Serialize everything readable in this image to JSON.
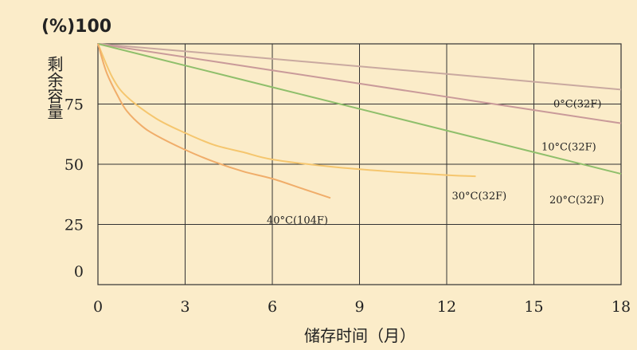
{
  "chart_data": {
    "type": "line",
    "title": "(%)100",
    "ylabel": "剩余容量",
    "xlabel": "储存时间（月）",
    "xlim": [
      0,
      18
    ],
    "ylim": [
      0,
      100
    ],
    "xticks": [
      "0",
      "3",
      "6",
      "9",
      "12",
      "15",
      "18"
    ],
    "yticks": [
      "0",
      "25",
      "50",
      "75"
    ],
    "grid": true,
    "series": [
      {
        "name": "0°C(32F)",
        "color": "#c9a9a0",
        "x": [
          0,
          6,
          12,
          18
        ],
        "y": [
          100,
          93.8,
          87.5,
          81
        ]
      },
      {
        "name": "10°C(32F)",
        "color": "#c99a9a",
        "x": [
          0,
          6,
          12,
          18
        ],
        "y": [
          100,
          89,
          78,
          67
        ]
      },
      {
        "name": "20°C(32F)",
        "color": "#8fbf6b",
        "x": [
          0,
          3,
          6,
          9,
          12,
          15,
          18
        ],
        "y": [
          100,
          91,
          82,
          73,
          64,
          55,
          46
        ]
      },
      {
        "name": "30°C(32F)",
        "color": "#f5c66e",
        "x": [
          0,
          0.5,
          1,
          2,
          3,
          4,
          5,
          6,
          8,
          10,
          12,
          13
        ],
        "y": [
          100,
          86,
          78,
          69,
          63,
          58,
          55,
          52,
          49,
          47,
          45.5,
          45
        ]
      },
      {
        "name": "40°C(104F)",
        "color": "#f0ad6a",
        "x": [
          0,
          0.3,
          0.7,
          1,
          1.5,
          2,
          3,
          4,
          5,
          6,
          7,
          8
        ],
        "y": [
          100,
          88,
          78,
          72,
          66,
          62,
          56,
          51,
          47,
          44,
          40,
          36
        ]
      }
    ],
    "annotations": [
      {
        "text": "0°C(32F)",
        "series": 0
      },
      {
        "text": "10°C(32F)",
        "series": 1
      },
      {
        "text": "20°C(32F)",
        "series": 2
      },
      {
        "text": "30°C(32F)",
        "series": 3
      },
      {
        "text": "40°C(104F)",
        "series": 4
      }
    ]
  }
}
